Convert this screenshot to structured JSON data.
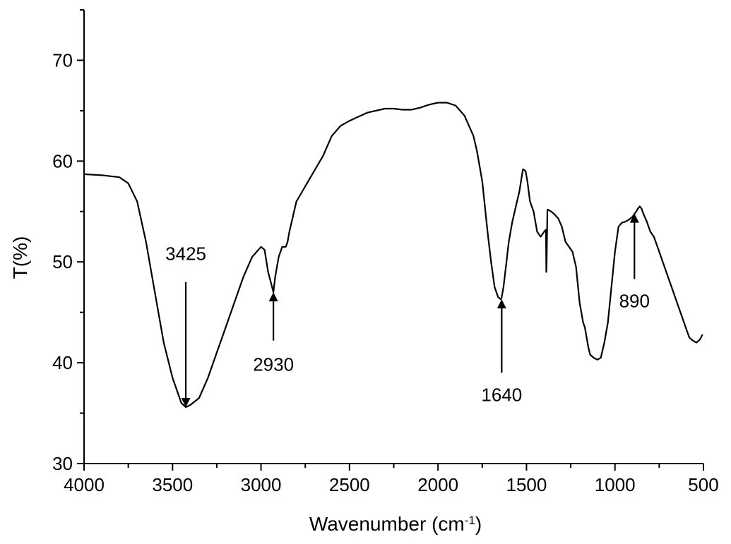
{
  "chart_data": {
    "type": "line",
    "title": "",
    "xlabel": "Wavenumber (cm",
    "xlabel_sup": "-1",
    "xlabel_close": ")",
    "ylabel": "T(%)",
    "xlim": [
      4000,
      500
    ],
    "ylim": [
      30,
      75
    ],
    "x_ticks": [
      4000,
      3500,
      3000,
      2500,
      2000,
      1500,
      1000,
      500
    ],
    "x_tick_labels": [
      "4000",
      "3500",
      "3000",
      "2500",
      "2000",
      "1500",
      "1000",
      "500"
    ],
    "y_ticks": [
      30,
      40,
      50,
      60,
      70
    ],
    "y_tick_labels": [
      "30",
      "40",
      "50",
      "60",
      "70"
    ],
    "grid": false,
    "legend": "none",
    "series": [
      {
        "x": [
          4000,
          3900,
          3800,
          3750,
          3700,
          3650,
          3600,
          3550,
          3500,
          3450,
          3425,
          3400,
          3350,
          3300,
          3250,
          3200,
          3150,
          3100,
          3050,
          3000,
          2980,
          2960,
          2945,
          2930,
          2920,
          2900,
          2880,
          2860,
          2850,
          2840,
          2800,
          2750,
          2700,
          2650,
          2600,
          2550,
          2500,
          2400,
          2300,
          2250,
          2200,
          2150,
          2100,
          2050,
          2000,
          1950,
          1900,
          1850,
          1800,
          1780,
          1750,
          1720,
          1700,
          1680,
          1660,
          1645,
          1640,
          1630,
          1620,
          1600,
          1580,
          1560,
          1540,
          1520,
          1505,
          1495,
          1480,
          1460,
          1440,
          1420,
          1400,
          1390,
          1388,
          1386,
          1384,
          1382,
          1380,
          1360,
          1340,
          1320,
          1300,
          1280,
          1260,
          1240,
          1220,
          1200,
          1180,
          1170,
          1160,
          1150,
          1140,
          1120,
          1100,
          1080,
          1060,
          1040,
          1020,
          1000,
          980,
          960,
          940,
          920,
          900,
          880,
          870,
          860,
          850,
          840,
          820,
          800,
          780,
          760,
          740,
          720,
          700,
          680,
          660,
          640,
          620,
          600,
          580,
          560,
          540,
          520,
          505
        ],
        "values": [
          58.7,
          58.6,
          58.4,
          57.8,
          56,
          52,
          47,
          42,
          38.5,
          36,
          35.6,
          35.8,
          36.5,
          38.5,
          41,
          43.5,
          46,
          48.5,
          50.5,
          51.5,
          51.2,
          49,
          48,
          47,
          48.5,
          50.5,
          51.5,
          51.5,
          52,
          53,
          56,
          57.5,
          59,
          60.5,
          62.5,
          63.5,
          64,
          64.8,
          65.2,
          65.2,
          65.1,
          65.1,
          65.3,
          65.6,
          65.8,
          65.8,
          65.5,
          64.5,
          62.5,
          61,
          58,
          53,
          50,
          47.5,
          46.5,
          46.3,
          46.5,
          47.5,
          49,
          52,
          54,
          55.5,
          57,
          59.2,
          59,
          58,
          56,
          55,
          53,
          52.5,
          53,
          53.2,
          49,
          50,
          52.5,
          55,
          55.2,
          55,
          54.7,
          54.3,
          53.5,
          52,
          51.5,
          51,
          49.5,
          46,
          44,
          43.5,
          42.5,
          41.5,
          40.8,
          40.5,
          40.3,
          40.5,
          42,
          44,
          47.5,
          51,
          53.5,
          53.9,
          54,
          54.2,
          54.5,
          55,
          55.3,
          55.5,
          55.3,
          54.8,
          54,
          53,
          52.5,
          51.5,
          50.5,
          49.5,
          48.5,
          47.5,
          46.5,
          45.5,
          44.5,
          43.5,
          42.5,
          42.2,
          42,
          42.3,
          42.8
        ]
      }
    ],
    "annotations": [
      {
        "label": "3425",
        "x": 3425,
        "tip_y": 35.6,
        "tail_y": 48,
        "label_y": 50.2,
        "dir": "down"
      },
      {
        "label": "2930",
        "x": 2930,
        "tip_y": 47,
        "tail_y": 42.2,
        "label_y": 39.2,
        "dir": "up"
      },
      {
        "label": "1640",
        "x": 1640,
        "tip_y": 46.3,
        "tail_y": 39,
        "label_y": 36.2,
        "dir": "up"
      },
      {
        "label": "890",
        "x": 890,
        "tip_y": 54.8,
        "tail_y": 48.3,
        "label_y": 45.5,
        "dir": "up"
      }
    ]
  }
}
